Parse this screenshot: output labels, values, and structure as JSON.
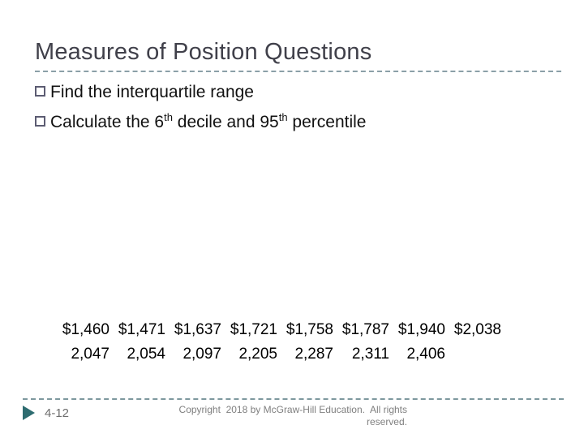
{
  "title": "Measures of Position Questions",
  "bullets": [
    {
      "parts": [
        {
          "text": "Find the interquartile range"
        }
      ]
    },
    {
      "parts": [
        {
          "text": "Calculate the 6"
        },
        {
          "text": "th",
          "superscript": true
        },
        {
          "text": " decile and 95"
        },
        {
          "text": "th",
          "superscript": true
        },
        {
          "text": " percentile"
        }
      ]
    }
  ],
  "values": {
    "rows": [
      [
        "$1,460",
        "$1,471",
        "$1,637",
        "$1,721",
        "$1,758",
        "$1,787",
        "$1,940",
        "$2,038"
      ],
      [
        "2,047",
        "2,054",
        "2,097",
        "2,205",
        "2,287",
        "2,311",
        "2,406"
      ]
    ]
  },
  "footer": {
    "slide_number": "4-12",
    "copyright_lines": [
      "Copyright  2018 by McGraw-Hill Education.  All rights",
      "reserved."
    ],
    "arrow_icon": "right-pointing-triangle"
  },
  "colors": {
    "title_text": "#40404a",
    "body_text": "#111111",
    "bullet_outline": "#5c5c72",
    "divider_dash": "#8ba0a8",
    "accent_arrow_teal": "#2e6c70",
    "footer_text_gray": "#7f7f7f",
    "background": "#ffffff"
  }
}
